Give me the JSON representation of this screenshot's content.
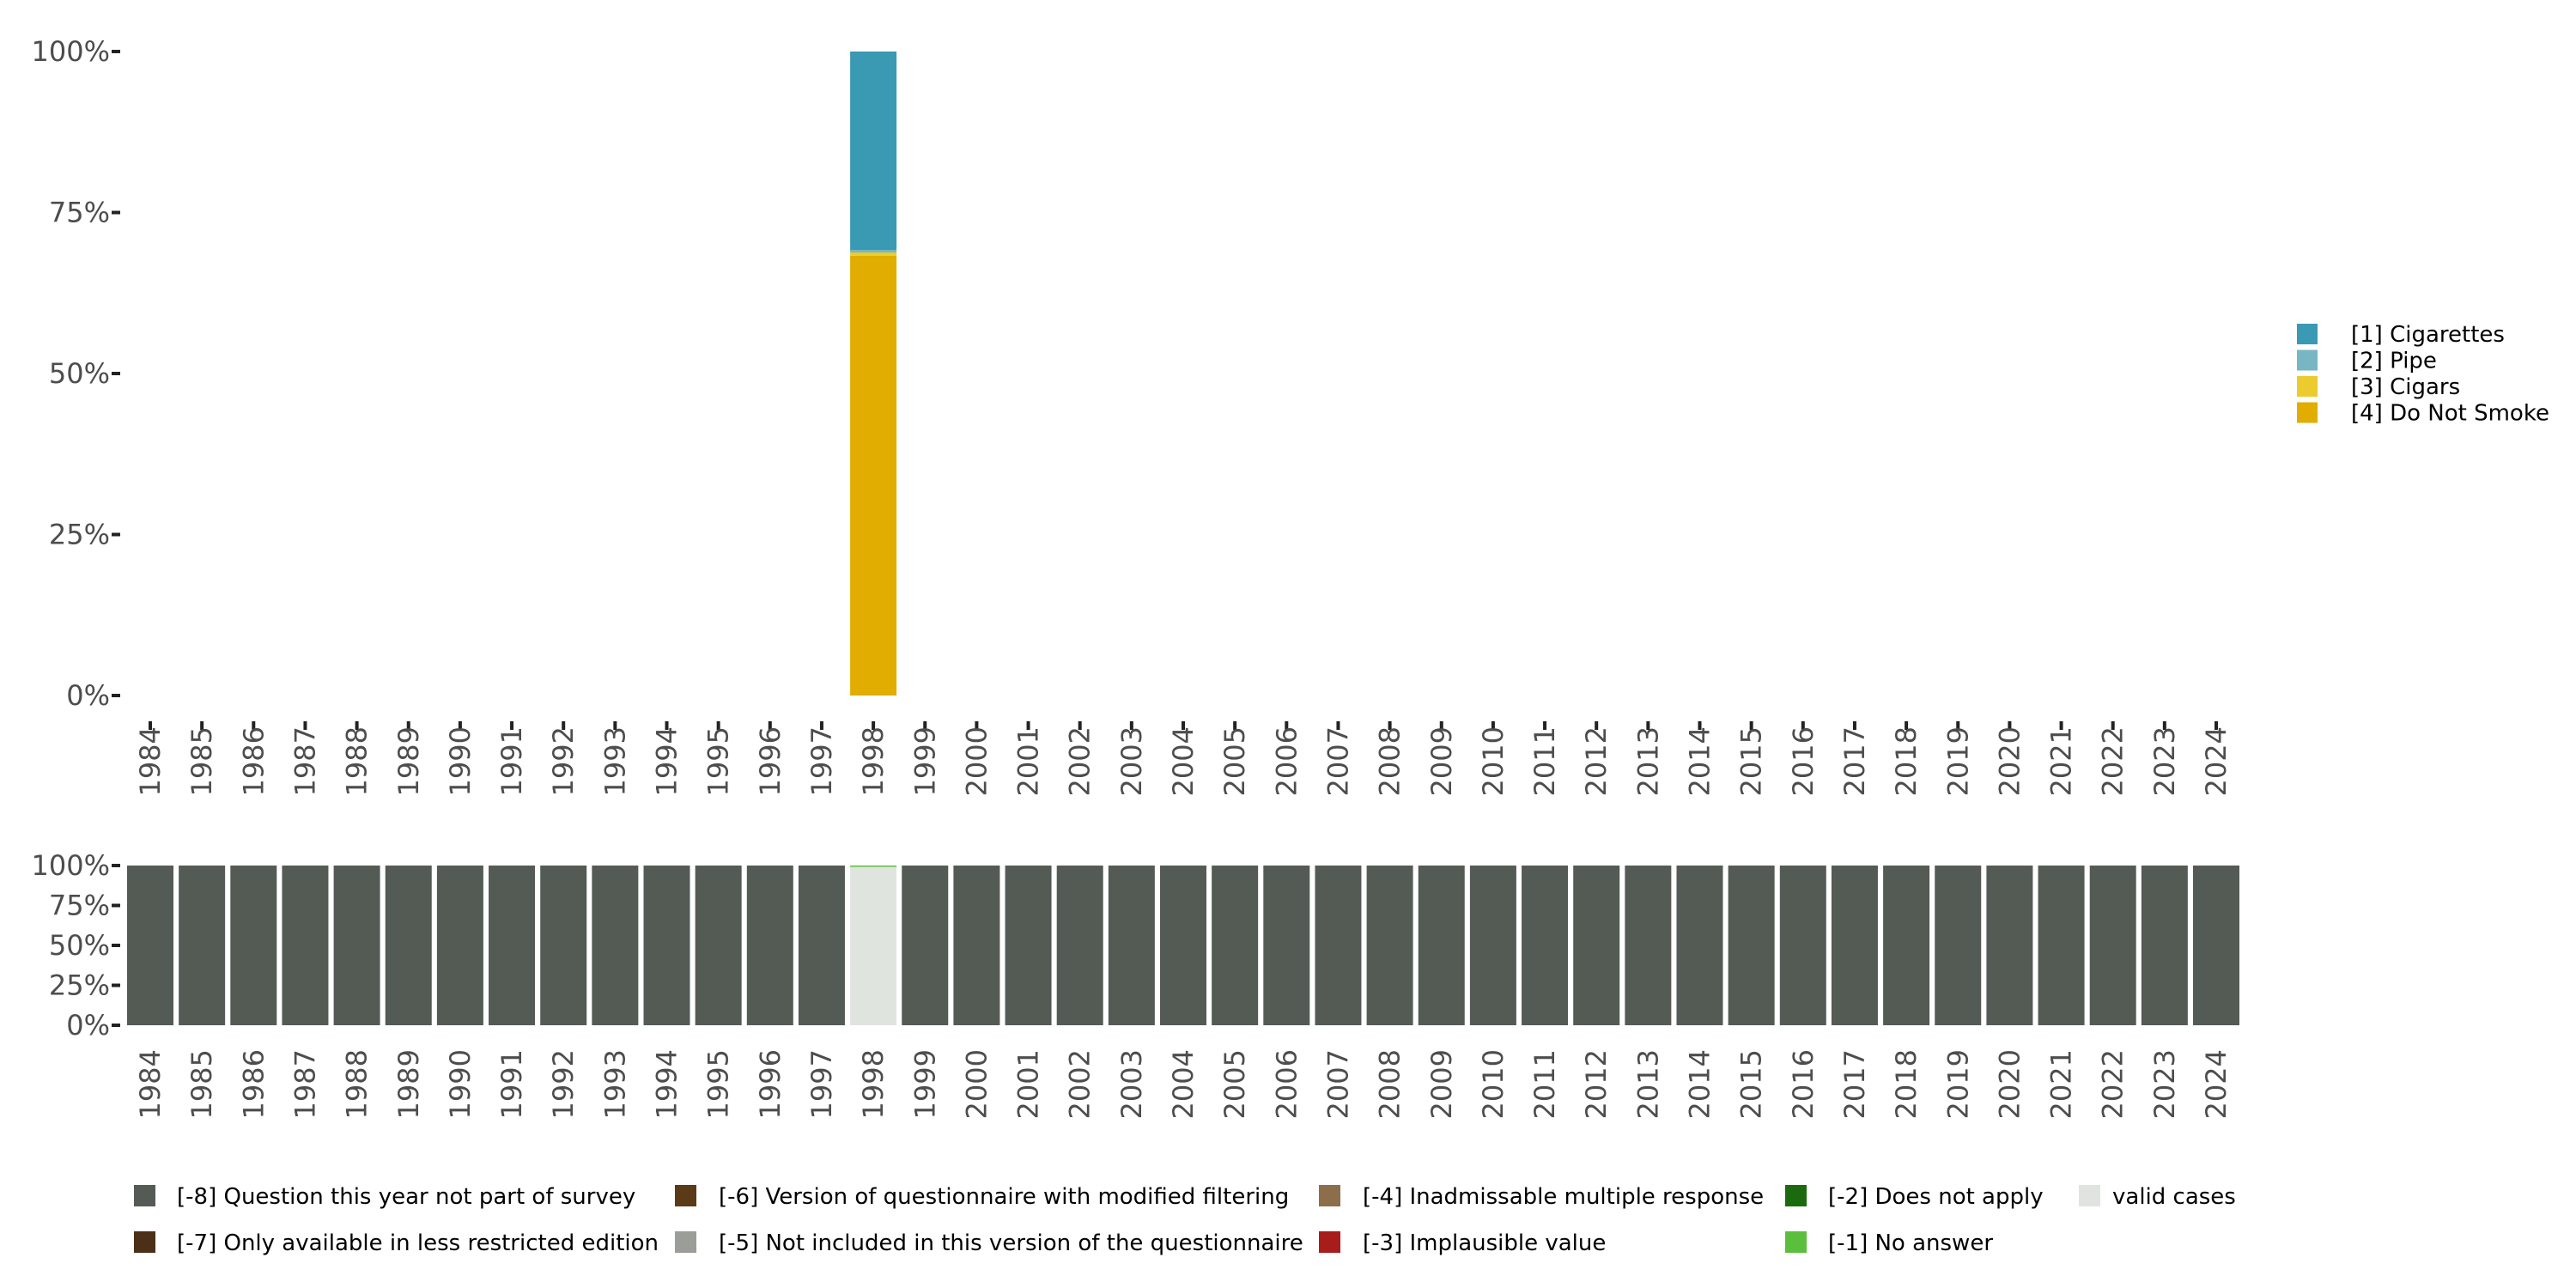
{
  "chart_data": [
    {
      "type": "bar",
      "stacked": true,
      "categories": [
        "1984",
        "1985",
        "1986",
        "1987",
        "1988",
        "1989",
        "1990",
        "1991",
        "1992",
        "1993",
        "1994",
        "1995",
        "1996",
        "1997",
        "1998",
        "1999",
        "2000",
        "2001",
        "2002",
        "2003",
        "2004",
        "2005",
        "2006",
        "2007",
        "2008",
        "2009",
        "2010",
        "2011",
        "2012",
        "2013",
        "2014",
        "2015",
        "2016",
        "2017",
        "2018",
        "2019",
        "2020",
        "2021",
        "2022",
        "2023",
        "2024"
      ],
      "ylim": [
        0,
        100
      ],
      "yticks": [
        "0%",
        "25%",
        "50%",
        "75%",
        "100%"
      ],
      "legend_position": "right",
      "series": [
        {
          "name": "[1] Cigarettes",
          "color": "#3a99b3",
          "values": {
            "1998": 30.8
          }
        },
        {
          "name": "[2] Pipe",
          "color": "#78b6c4",
          "values": {
            "1998": 0.4
          }
        },
        {
          "name": "[3] Cigars",
          "color": "#eccb2e",
          "values": {
            "1998": 0.5
          }
        },
        {
          "name": "[4] Do Not Smoke",
          "color": "#e0ad00",
          "values": {
            "1998": 68.3
          }
        }
      ]
    },
    {
      "type": "bar",
      "stacked": true,
      "categories": [
        "1984",
        "1985",
        "1986",
        "1987",
        "1988",
        "1989",
        "1990",
        "1991",
        "1992",
        "1993",
        "1994",
        "1995",
        "1996",
        "1997",
        "1998",
        "1999",
        "2000",
        "2001",
        "2002",
        "2003",
        "2004",
        "2005",
        "2006",
        "2007",
        "2008",
        "2009",
        "2010",
        "2011",
        "2012",
        "2013",
        "2014",
        "2015",
        "2016",
        "2017",
        "2018",
        "2019",
        "2020",
        "2021",
        "2022",
        "2023",
        "2024"
      ],
      "ylim": [
        0,
        100
      ],
      "yticks": [
        "0%",
        "25%",
        "50%",
        "75%",
        "100%"
      ],
      "legend_position": "bottom",
      "series": [
        {
          "name": "[-8] Question this year not part of survey",
          "color": "#545b55",
          "default": 100,
          "values": {
            "1998": 0
          }
        },
        {
          "name": "[-6] Version of questionnaire with modified filtering",
          "color": "#5a3a17",
          "default": 0,
          "values": {}
        },
        {
          "name": "[-4] Inadmissable multiple response",
          "color": "#8d6e4a",
          "default": 0,
          "values": {}
        },
        {
          "name": "[-2] Does not apply",
          "color": "#1b6b0e",
          "default": 0,
          "values": {}
        },
        {
          "name": "valid cases",
          "color": "#e0e4df",
          "default": 0,
          "values": {
            "1998": 99.7
          }
        },
        {
          "name": "[-7] Only available in less restricted edition",
          "color": "#4b2f17",
          "default": 0,
          "values": {}
        },
        {
          "name": "[-5] Not included in this version of the questionnaire",
          "color": "#9a9d98",
          "default": 0,
          "values": {}
        },
        {
          "name": "[-3] Implausible value",
          "color": "#a81c1c",
          "default": 0,
          "values": {}
        },
        {
          "name": "[-1] No answer",
          "color": "#5bbf3e",
          "default": 0,
          "values": {
            "1998": 0.3
          }
        }
      ],
      "stack_order": [
        0,
        1,
        2,
        3,
        5,
        6,
        7,
        4,
        8
      ]
    }
  ]
}
